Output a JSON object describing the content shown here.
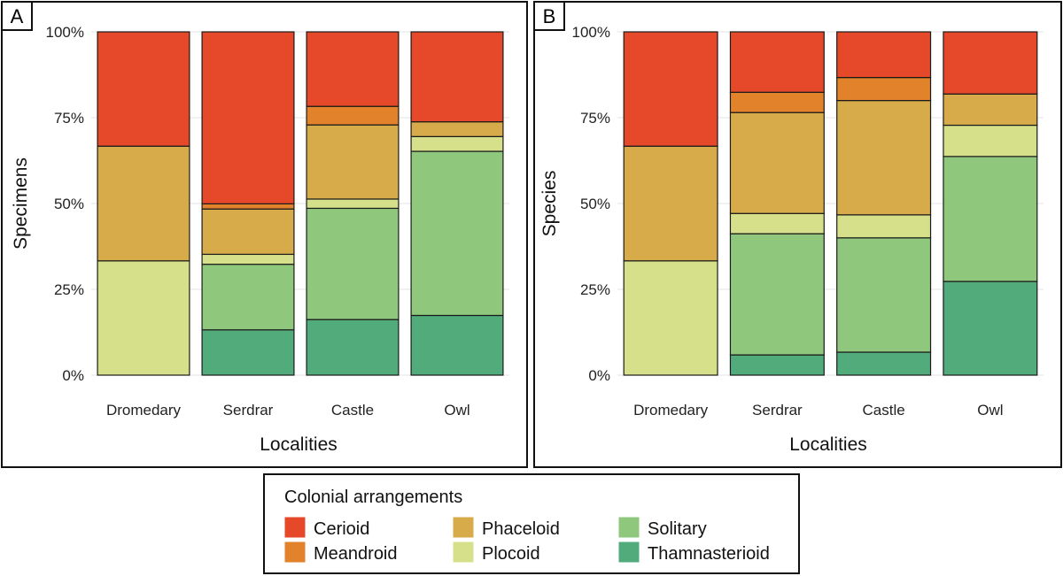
{
  "colors": {
    "Cerioid": "#e5492a",
    "Meandroid": "#e2822a",
    "Phaceloid": "#d8ab4a",
    "Plocoid": "#d6e08a",
    "Solitary": "#8fc77c",
    "Thamnasterioid": "#52ab7b"
  },
  "stack_order": [
    "Thamnasterioid",
    "Solitary",
    "Plocoid",
    "Phaceloid",
    "Meandroid",
    "Cerioid"
  ],
  "chart_data": [
    {
      "type": "bar",
      "stacked": true,
      "panel": "A",
      "xlabel": "Localities",
      "ylabel": "Specimens",
      "ylim": [
        0,
        100
      ],
      "yticks": [
        "0%",
        "25%",
        "50%",
        "75%",
        "100%"
      ],
      "categories": [
        "Dromedary",
        "Serdrar",
        "Castle",
        "Owl"
      ],
      "series": [
        {
          "name": "Thamnasterioid",
          "values": [
            0,
            13.2,
            16.2,
            17.4
          ]
        },
        {
          "name": "Solitary",
          "values": [
            0,
            19.1,
            32.4,
            47.8
          ]
        },
        {
          "name": "Plocoid",
          "values": [
            33.3,
            2.9,
            2.7,
            4.3
          ]
        },
        {
          "name": "Phaceloid",
          "values": [
            33.4,
            13.2,
            21.6,
            4.3
          ]
        },
        {
          "name": "Meandroid",
          "values": [
            0,
            1.5,
            5.4,
            0
          ]
        },
        {
          "name": "Cerioid",
          "values": [
            33.3,
            50.1,
            21.7,
            26.2
          ]
        }
      ]
    },
    {
      "type": "bar",
      "stacked": true,
      "panel": "B",
      "xlabel": "Localities",
      "ylabel": "Species",
      "ylim": [
        0,
        100
      ],
      "yticks": [
        "0%",
        "25%",
        "50%",
        "75%",
        "100%"
      ],
      "categories": [
        "Dromedary",
        "Serdrar",
        "Castle",
        "Owl"
      ],
      "series": [
        {
          "name": "Thamnasterioid",
          "values": [
            0,
            5.9,
            6.7,
            27.3
          ]
        },
        {
          "name": "Solitary",
          "values": [
            0,
            35.3,
            33.3,
            36.4
          ]
        },
        {
          "name": "Plocoid",
          "values": [
            33.3,
            5.9,
            6.7,
            9.1
          ]
        },
        {
          "name": "Phaceloid",
          "values": [
            33.4,
            29.4,
            33.3,
            9.1
          ]
        },
        {
          "name": "Meandroid",
          "values": [
            0,
            5.9,
            6.7,
            0
          ]
        },
        {
          "name": "Cerioid",
          "values": [
            33.3,
            17.6,
            13.3,
            18.1
          ]
        }
      ]
    }
  ],
  "legend": {
    "title": "Colonial arrangements",
    "items": [
      "Cerioid",
      "Meandroid",
      "Phaceloid",
      "Plocoid",
      "Solitary",
      "Thamnasterioid"
    ]
  }
}
